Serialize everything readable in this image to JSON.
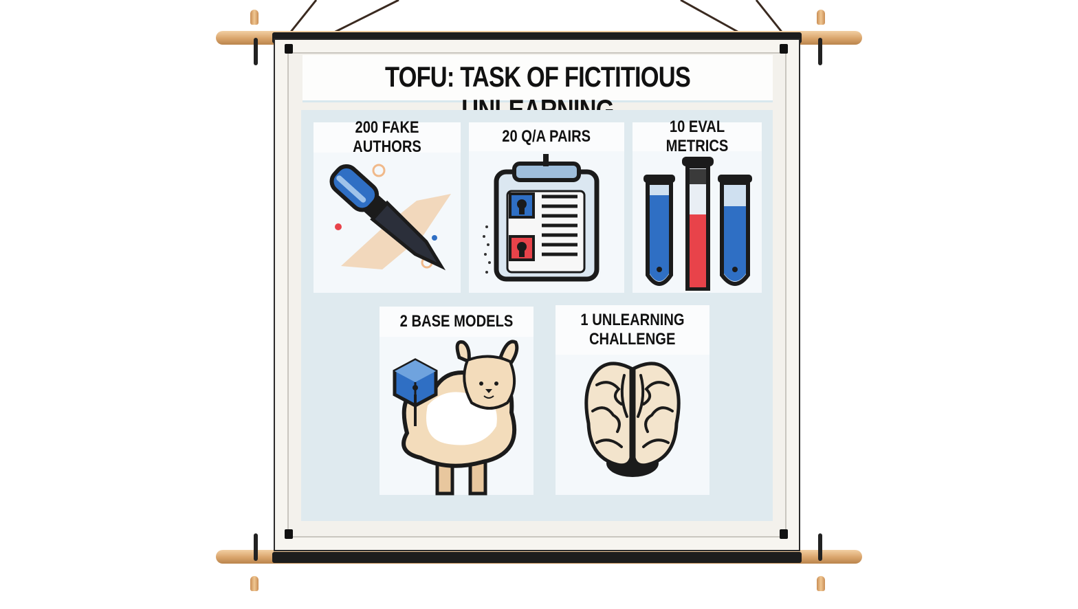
{
  "title": "TOFU: TASK OF FICTITIOUS UNLEARNING",
  "cards": [
    {
      "label": "200 FAKE AUTHORS",
      "icon": "pen-icon"
    },
    {
      "label": "20 Q/A PAIRS",
      "icon": "clipboard-icon"
    },
    {
      "label": "10 EVAL METRICS",
      "icon": "test-tubes-icon"
    },
    {
      "label": "2 BASE MODELS",
      "icon": "llama-icon"
    },
    {
      "label_line1": "1 UNLEARNING",
      "label_line2": "CHALLENGE",
      "icon": "brain-icon"
    }
  ],
  "colors": {
    "blue": "#2f6fc4",
    "red": "#e8434a",
    "dark": "#1b1b1b",
    "panel": "#dfeaef",
    "wood": "#d9a46b"
  }
}
